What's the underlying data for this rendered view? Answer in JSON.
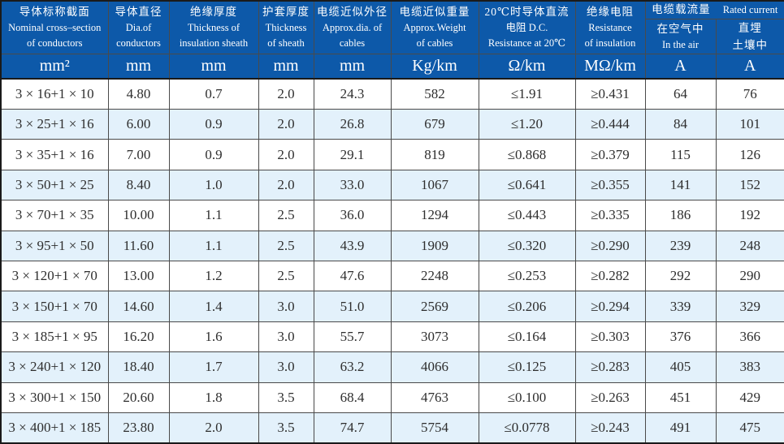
{
  "colors": {
    "header_blue": "#0d59a9",
    "row_alt_blue": "#e3f1fb",
    "grid_line": "#4a4a4a",
    "outer_border": "#1a1a1a",
    "header_text": "#ffffff",
    "body_text": "#2e2e2e"
  },
  "table": {
    "columns": [
      {
        "key": "nominal-cross-section",
        "cn": "导体标称截面",
        "en1": "Nominal cross–section",
        "en2": "of conductors",
        "unit": "mm²"
      },
      {
        "key": "conductor-diameter",
        "cn": "导体直径",
        "en1": "Dia.of",
        "en2": "conductors",
        "unit": "mm"
      },
      {
        "key": "insulation-thickness",
        "cn": "绝缘厚度",
        "en1": "Thickness of",
        "en2": "insulation sheath",
        "unit": "mm"
      },
      {
        "key": "sheath-thickness",
        "cn": "护套厚度",
        "en1": "Thickness",
        "en2": "of sheath",
        "unit": "mm"
      },
      {
        "key": "approx-diameter",
        "cn": "电缆近似外径",
        "en1": "Approx.dia. of",
        "en2": "cables",
        "unit": "mm"
      },
      {
        "key": "approx-weight",
        "cn": "电缆近似重量",
        "en1": "Approx.Weight",
        "en2": "of cables",
        "unit": "Kg/km"
      },
      {
        "key": "dc-resistance",
        "cn": "20℃时导体直流",
        "en1": "电阻 D.C.",
        "en2": "Resistance at 20℃",
        "unit": "Ω/km"
      },
      {
        "key": "insulation-resistance",
        "cn": "绝缘电阻",
        "en1": "Resistance",
        "en2": "of insulation",
        "unit": "MΩ/km"
      },
      {
        "key": "current-in-air",
        "unit": "A"
      },
      {
        "key": "current-buried",
        "unit": "A"
      }
    ],
    "rated_current_group": {
      "cn": "电缆载流量",
      "en": "Rated current"
    },
    "sub_headers": [
      {
        "line1": "在空气中",
        "line2": "In the air"
      },
      {
        "line1": "直埋",
        "line2": "土壤中"
      }
    ],
    "rows": [
      [
        "3 × 16+1 × 10",
        "4.80",
        "0.7",
        "2.0",
        "24.3",
        "582",
        "≤1.91",
        "≥0.431",
        "64",
        "76"
      ],
      [
        "3 × 25+1 × 16",
        "6.00",
        "0.9",
        "2.0",
        "26.8",
        "679",
        "≤1.20",
        "≥0.444",
        "84",
        "101"
      ],
      [
        "3 × 35+1 × 16",
        "7.00",
        "0.9",
        "2.0",
        "29.1",
        "819",
        "≤0.868",
        "≥0.379",
        "115",
        "126"
      ],
      [
        "3 × 50+1 × 25",
        "8.40",
        "1.0",
        "2.0",
        "33.0",
        "1067",
        "≤0.641",
        "≥0.355",
        "141",
        "152"
      ],
      [
        "3 × 70+1 × 35",
        "10.00",
        "1.1",
        "2.5",
        "36.0",
        "1294",
        "≤0.443",
        "≥0.335",
        "186",
        "192"
      ],
      [
        "3 × 95+1 × 50",
        "11.60",
        "1.1",
        "2.5",
        "43.9",
        "1909",
        "≤0.320",
        "≥0.290",
        "239",
        "248"
      ],
      [
        "3 × 120+1 × 70",
        "13.00",
        "1.2",
        "2.5",
        "47.6",
        "2248",
        "≤0.253",
        "≥0.282",
        "292",
        "290"
      ],
      [
        "3 × 150+1 × 70",
        "14.60",
        "1.4",
        "3.0",
        "51.0",
        "2569",
        "≤0.206",
        "≥0.294",
        "339",
        "329"
      ],
      [
        "3 × 185+1 × 95",
        "16.20",
        "1.6",
        "3.0",
        "55.7",
        "3073",
        "≤0.164",
        "≥0.303",
        "376",
        "366"
      ],
      [
        "3 × 240+1 × 120",
        "18.40",
        "1.7",
        "3.0",
        "63.2",
        "4066",
        "≤0.125",
        "≥0.283",
        "405",
        "383"
      ],
      [
        "3 × 300+1 × 150",
        "20.60",
        "1.8",
        "3.5",
        "68.4",
        "4763",
        "≤0.100",
        "≥0.263",
        "451",
        "429"
      ],
      [
        "3 × 400+1 × 185",
        "23.80",
        "2.0",
        "3.5",
        "74.7",
        "5754",
        "≤0.0778",
        "≥0.243",
        "491",
        "475"
      ]
    ]
  }
}
